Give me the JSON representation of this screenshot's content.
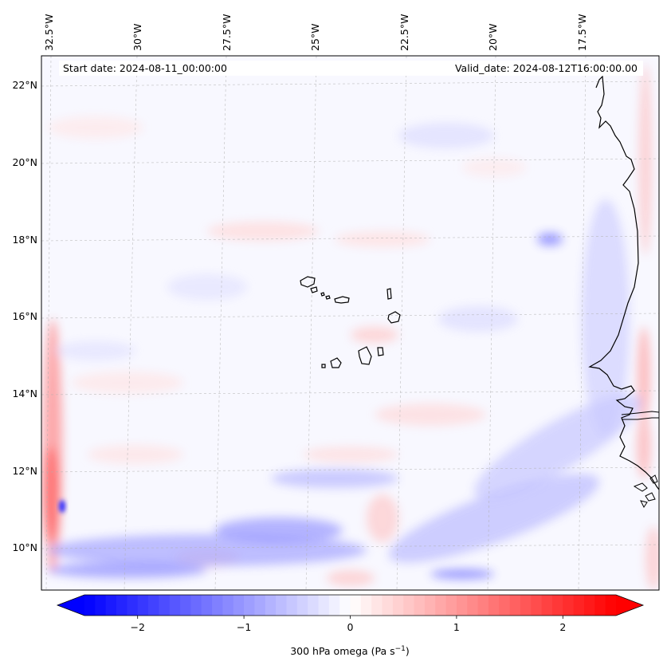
{
  "map": {
    "start_date_text": "Start date: 2024-08-11_00:00:00",
    "valid_date_text": "Valid_date: 2024-08-12T16:00:00.00",
    "top_lon_labels": [
      "32.5°W",
      "30°W",
      "27.5°W",
      "25°W",
      "22.5°W",
      "20°W",
      "17.5°W"
    ],
    "left_lat_labels": [
      "22°N",
      "20°N",
      "18°N",
      "16°N",
      "14°N",
      "12°N",
      "10°N"
    ],
    "field_colormap": "bwr",
    "islands": "Cape Verde",
    "coastline": "West Africa (Mauritania, Senegal, Gambia, Guinea-Bissau)"
  },
  "colorbar": {
    "label_text": "300 hPa omega (Pa s",
    "label_sup": "−1",
    "label_close": ")",
    "ticks": [
      {
        "value": -2,
        "label": "−2"
      },
      {
        "value": -1,
        "label": "−1"
      },
      {
        "value": 0,
        "label": "0"
      },
      {
        "value": 1,
        "label": "1"
      },
      {
        "value": 2,
        "label": "2"
      }
    ],
    "min": -2.5,
    "max": 2.5,
    "extend": "both",
    "color_min": "#0000ff",
    "color_mid": "#ffffff",
    "color_max": "#ff0000"
  }
}
